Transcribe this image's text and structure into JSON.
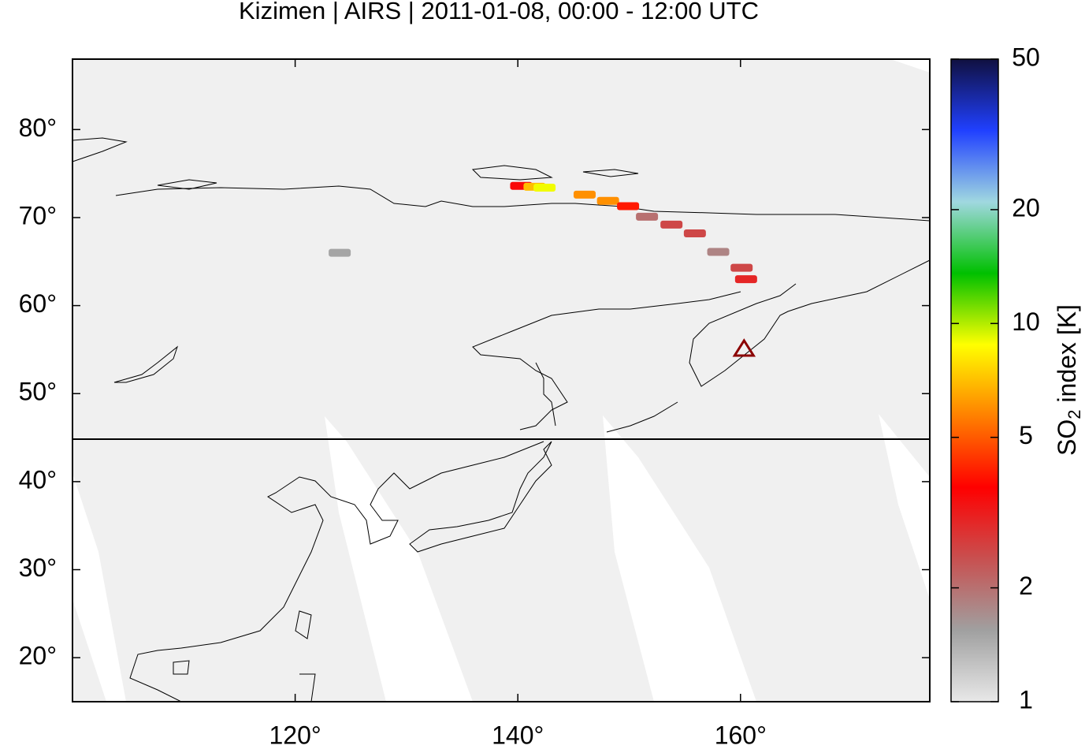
{
  "title": "Kizimen | AIRS | 2011-01-08, 00:00 - 12:00 UTC",
  "map": {
    "xlim": [
      100,
      177
    ],
    "ylim": [
      15,
      88
    ],
    "xticks": [
      {
        "value": 120,
        "label": "120°"
      },
      {
        "value": 140,
        "label": "140°"
      },
      {
        "value": 160,
        "label": "160°"
      }
    ],
    "yticks": [
      {
        "value": 20,
        "label": "20°"
      },
      {
        "value": 30,
        "label": "30°"
      },
      {
        "value": 40,
        "label": "40°"
      },
      {
        "value": 50,
        "label": "50°"
      },
      {
        "value": 60,
        "label": "60°"
      },
      {
        "value": 70,
        "label": "70°"
      },
      {
        "value": 80,
        "label": "80°"
      }
    ]
  },
  "volcano": {
    "lon": 160.32,
    "lat": 55.13,
    "color": "#8b0000"
  },
  "plume": {
    "lon": [
      140.3,
      141.5,
      142.4,
      146.0,
      148.1,
      149.9,
      151.6,
      153.8,
      155.9,
      158.0,
      160.1,
      160.5,
      124.0
    ],
    "lat": [
      73.6,
      73.5,
      73.4,
      72.6,
      71.9,
      71.3,
      70.1,
      69.2,
      68.2,
      66.1,
      64.3,
      63.0,
      66.0
    ],
    "value": [
      3.5,
      7,
      9,
      6,
      6,
      4,
      2,
      2.5,
      2.5,
      1.8,
      2.5,
      3,
      1.5
    ]
  },
  "colorbar": {
    "label_parts": [
      "SO",
      "2",
      " index [K]"
    ],
    "lim": [
      1,
      50
    ],
    "scale": "log",
    "ticks": [
      1,
      2,
      5,
      10,
      20,
      50
    ],
    "colors": [
      "#e8e8e8",
      "#a0a0a0",
      "#c85050",
      "#ff0000",
      "#ff8000",
      "#ffff00",
      "#00c000",
      "#a0d8e0",
      "#2040ff",
      "#101040"
    ]
  }
}
